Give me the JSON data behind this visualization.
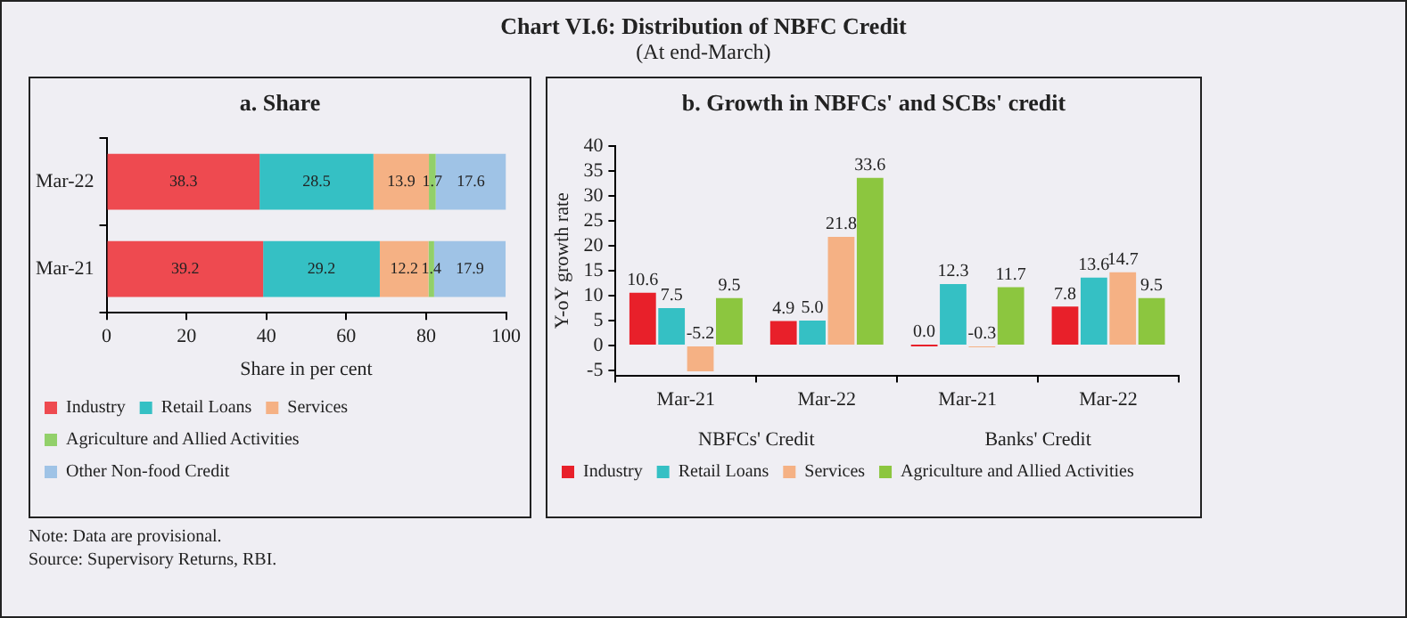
{
  "chart_data": [
    {
      "type": "bar",
      "title": "a. Share",
      "orientation": "horizontal",
      "stacked": true,
      "data_labels": true,
      "legend": "bottom",
      "xlabel": "Share in per cent",
      "categories": [
        "Mar-22",
        "Mar-21"
      ],
      "xlim": [
        0,
        100
      ],
      "xticks": [
        0,
        20,
        40,
        60,
        80,
        100
      ],
      "series": [
        {
          "name": "Industry",
          "color": "#ee4a50",
          "values": [
            38.3,
            39.2
          ]
        },
        {
          "name": "Retail Loans",
          "color": "#35c0c4",
          "values": [
            28.5,
            29.2
          ]
        },
        {
          "name": "Services",
          "color": "#f5b184",
          "values": [
            13.9,
            12.2
          ]
        },
        {
          "name": "Agriculture and Allied Activities",
          "color": "#92d06a",
          "values": [
            1.7,
            1.4
          ]
        },
        {
          "name": "Other Non-food Credit",
          "color": "#9fc3e6",
          "values": [
            17.6,
            17.9
          ]
        }
      ],
      "annotations": [
        "Chart VI.6: Distribution of NBFC Credit",
        "(At end-March)",
        "Note: Data are provisional.",
        "Source: Supervisory Returns, RBI."
      ]
    },
    {
      "type": "bar",
      "title": "b. Growth in NBFCs' and SCBs' credit",
      "ylabel": "Y-oY growth rate",
      "legend": "bottom",
      "categories": [
        "Mar-21",
        "Mar-22",
        "Mar-21",
        "Mar-22"
      ],
      "ylim": [
        -6,
        40
      ],
      "yticks": [
        -5,
        0,
        5,
        10,
        15,
        20,
        25,
        30,
        35,
        40
      ],
      "series": [
        {
          "name": "Industry",
          "color": "#e8202a",
          "values": [
            10.6,
            4.9,
            0.0,
            7.8
          ],
          "value_labels": [
            "10.6",
            "4.9",
            "0.0",
            "7.8"
          ]
        },
        {
          "name": "Retail Loans",
          "color": "#35c0c4",
          "values": [
            7.5,
            5.0,
            12.3,
            13.6
          ],
          "value_labels": [
            "7.5",
            "5.0",
            "12.3",
            "13.6"
          ]
        },
        {
          "name": "Services",
          "color": "#f5b184",
          "values": [
            -5.2,
            21.8,
            -0.3,
            14.7
          ],
          "value_labels": [
            "-5.2",
            "21.8",
            "-0.3",
            "14.7"
          ]
        },
        {
          "name": "Agriculture and Allied Activities",
          "color": "#8cc63f",
          "values": [
            9.5,
            33.6,
            11.7,
            9.5
          ],
          "value_labels": [
            "9.5",
            "33.6",
            "11.7",
            "9.5"
          ]
        }
      ],
      "annotations": [
        "NBFCs' Credit",
        "Banks' Credit"
      ]
    }
  ]
}
